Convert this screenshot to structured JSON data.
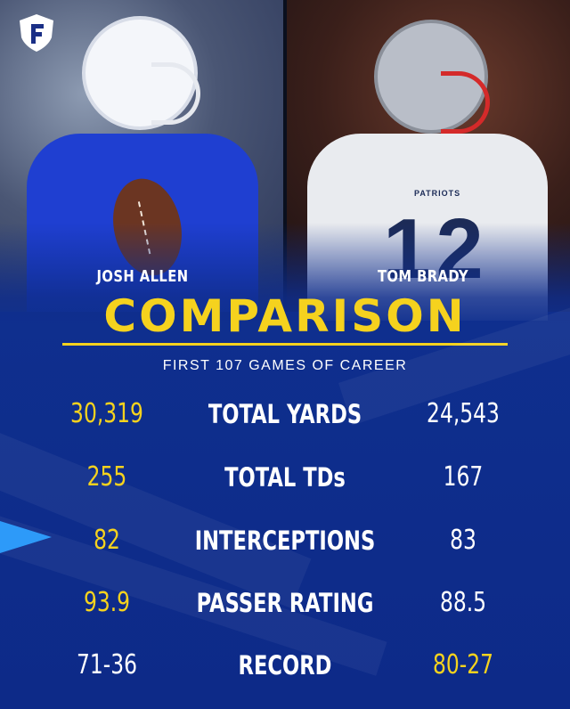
{
  "players": {
    "left": {
      "name": "JOSH ALLEN"
    },
    "right": {
      "name": "TOM BRADY",
      "jersey_number": "12",
      "jersey_text": "PATRIOTS"
    }
  },
  "title": "COMPARISON",
  "subtitle": "FIRST 107 GAMES OF CAREER",
  "stats": [
    {
      "label": "TOTAL YARDS",
      "left": "30,319",
      "right": "24,543",
      "leader": "left"
    },
    {
      "label": "TOTAL TDs",
      "left": "255",
      "right": "167",
      "leader": "left"
    },
    {
      "label": "INTERCEPTIONS",
      "left": "82",
      "right": "83",
      "leader": "left"
    },
    {
      "label": "PASSER RATING",
      "left": "93.9",
      "right": "88.5",
      "leader": "left"
    },
    {
      "label": "RECORD",
      "left": "71-36",
      "right": "80-27",
      "leader": "right"
    }
  ],
  "colors": {
    "accent_yellow": "#f5d21e",
    "background_blue": "#0f2f8e",
    "highlight_blue": "#2ea0ff"
  },
  "icons": {
    "brand_logo": "shield-f-logo"
  }
}
